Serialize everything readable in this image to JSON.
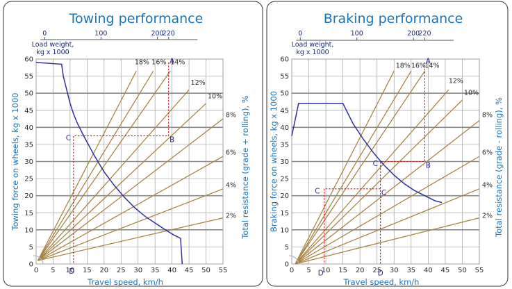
{
  "chart_data": [
    {
      "type": "line",
      "title": "Towing performance",
      "xlabel": "Travel speed, km/h",
      "ylabel": "Towing force on wheels, kg x 1000",
      "y2label": "Total resistance (grade + rolling), %",
      "load_axis": {
        "label_line1": "Load weight,",
        "label_line2": "kg x 1000",
        "ticks": [
          "0",
          "100",
          "200",
          "220"
        ],
        "tick_values": [
          0,
          100,
          200,
          220
        ]
      },
      "x_ticks": [
        "0",
        "5",
        "10",
        "15",
        "20",
        "25",
        "30",
        "35",
        "40",
        "45",
        "50",
        "55"
      ],
      "y_ticks": [
        "0",
        "5",
        "10",
        "15",
        "20",
        "25",
        "30",
        "35",
        "40",
        "45",
        "50",
        "55",
        "60"
      ],
      "xlim": [
        0,
        55
      ],
      "ylim": [
        0,
        60
      ],
      "grid": true,
      "grade_lines": [
        {
          "label": "2%",
          "end": [
            55,
            13.5
          ]
        },
        {
          "label": "4%",
          "end": [
            55,
            22
          ]
        },
        {
          "label": "6%",
          "end": [
            55,
            31.5
          ]
        },
        {
          "label": "8%",
          "end": [
            55,
            42.5
          ]
        },
        {
          "label": "10%",
          "end": [
            50,
            47
          ]
        },
        {
          "label": "12%",
          "end": [
            45,
            51
          ]
        },
        {
          "label": "14%",
          "end": [
            39.5,
            56.5
          ]
        },
        {
          "label": "16%",
          "end": [
            34.5,
            56.5
          ]
        },
        {
          "label": "18%",
          "end": [
            29.5,
            56.5
          ]
        }
      ],
      "grade_label_pos": {
        "2%": [
          55.8,
          13.5
        ],
        "4%": [
          55.8,
          22.5
        ],
        "6%": [
          55.8,
          32
        ],
        "8%": [
          55.8,
          43
        ],
        "10%": [
          50.5,
          48.5
        ],
        "12%": [
          45.5,
          52.5
        ],
        "14%": [
          39.5,
          58.5
        ],
        "16%": [
          34,
          58.5
        ],
        "18%": [
          29,
          58.5
        ]
      },
      "grade_origin": [
        0.5,
        1
      ],
      "curve": [
        [
          0,
          59
        ],
        [
          7.5,
          58.5
        ],
        [
          8,
          55
        ],
        [
          9,
          51
        ],
        [
          10,
          47
        ],
        [
          11,
          44
        ],
        [
          12,
          41.5
        ],
        [
          14,
          37.5
        ],
        [
          17,
          32
        ],
        [
          20,
          27
        ],
        [
          23,
          23
        ],
        [
          26,
          19.5
        ],
        [
          29,
          16.5
        ],
        [
          32,
          14
        ],
        [
          35,
          12
        ],
        [
          38,
          10
        ],
        [
          40.5,
          8.5
        ],
        [
          42.5,
          7.5
        ],
        [
          43,
          0
        ]
      ],
      "helper_path": [
        [
          39,
          59
        ],
        [
          39,
          37.5
        ],
        [
          11,
          37.5
        ],
        [
          11,
          0
        ]
      ],
      "points": [
        {
          "label": "A",
          "pos": [
            40,
            59.5
          ]
        },
        {
          "label": "B",
          "pos": [
            40,
            36.5
          ]
        },
        {
          "label": "C",
          "pos": [
            9.5,
            37
          ]
        },
        {
          "label": "D",
          "pos": [
            10.5,
            -2
          ]
        }
      ]
    },
    {
      "type": "line",
      "title": "Braking performance",
      "xlabel": "Travel speed, km/h",
      "ylabel": "Braking force on wheels, kg x 1000",
      "y2label": "Total resistance (grade - rolling), %",
      "load_axis": {
        "label_line1": "Load weight,",
        "label_line2": "kg x 1000",
        "ticks": [
          "0",
          "100",
          "200",
          "220"
        ],
        "tick_values": [
          0,
          100,
          200,
          220
        ]
      },
      "x_ticks": [
        "0",
        "5",
        "10",
        "15",
        "20",
        "25",
        "30",
        "35",
        "40",
        "45",
        "50",
        "55"
      ],
      "y_ticks": [
        "0",
        "5",
        "10",
        "15",
        "20",
        "25",
        "30",
        "35",
        "40",
        "45",
        "50",
        "55",
        "60"
      ],
      "xlim": [
        0,
        55
      ],
      "ylim": [
        0,
        60
      ],
      "grid": true,
      "grade_lines": [
        {
          "label": "2%",
          "end": [
            55,
            13.5
          ]
        },
        {
          "label": "4%",
          "end": [
            55,
            22
          ]
        },
        {
          "label": "6%",
          "end": [
            55,
            31.5
          ]
        },
        {
          "label": "8%",
          "end": [
            55,
            42
          ]
        },
        {
          "label": "10%",
          "end": [
            50,
            48
          ]
        },
        {
          "label": "12%",
          "end": [
            46,
            51
          ]
        },
        {
          "label": "14%",
          "end": [
            39,
            56.5
          ]
        },
        {
          "label": "16%",
          "end": [
            35,
            56.5
          ]
        },
        {
          "label": "18%",
          "end": [
            30,
            56.5
          ]
        }
      ],
      "grade_label_pos": {
        "2%": [
          55.8,
          13.5
        ],
        "4%": [
          55.8,
          22.5
        ],
        "6%": [
          55.8,
          32
        ],
        "8%": [
          55.8,
          43
        ],
        "10%": [
          50.5,
          49.5
        ],
        "12%": [
          46,
          53
        ],
        "14%": [
          39,
          57.5
        ],
        "16%": [
          35,
          57.5
        ],
        "18%": [
          30.5,
          57.5
        ]
      },
      "grade_origin": [
        1,
        0
      ],
      "curve": [
        [
          0,
          37.5
        ],
        [
          2,
          47
        ],
        [
          15,
          47
        ],
        [
          18,
          41
        ],
        [
          21,
          36.5
        ],
        [
          24,
          32.5
        ],
        [
          27,
          29
        ],
        [
          30,
          26
        ],
        [
          33,
          23.5
        ],
        [
          36,
          21.5
        ],
        [
          39,
          20
        ],
        [
          42,
          18.5
        ],
        [
          44,
          18
        ]
      ],
      "helper_path": [
        [
          39,
          59
        ],
        [
          39,
          30
        ],
        [
          26,
          30
        ],
        [
          26,
          0
        ]
      ],
      "helper_path2": [
        [
          26,
          22
        ],
        [
          9.5,
          22
        ],
        [
          9.5,
          0
        ]
      ],
      "points": [
        {
          "label": "A",
          "pos": [
            40,
            59.5
          ]
        },
        {
          "label": "B",
          "pos": [
            40,
            29
          ]
        },
        {
          "label": "C",
          "pos": [
            24.5,
            29.5
          ]
        },
        {
          "label": "C",
          "pos": [
            27,
            21
          ]
        },
        {
          "label": "C",
          "pos": [
            7.5,
            21.5
          ]
        },
        {
          "label": "D",
          "pos": [
            26,
            -2.5
          ]
        },
        {
          "label": "D",
          "pos": [
            8.5,
            -2.5
          ]
        }
      ]
    }
  ]
}
